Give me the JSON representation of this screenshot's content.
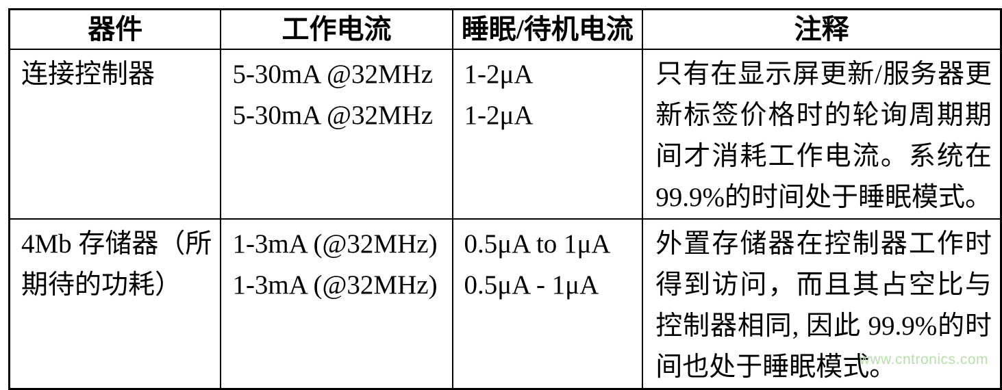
{
  "table": {
    "headers": [
      "器件",
      "工作电流",
      "睡眠/待机电流",
      "注释"
    ],
    "rows": [
      {
        "device_lines": [
          "连接控制器"
        ],
        "operating_lines": [
          "5-30mA @32MHz",
          "5-30mA @32MHz"
        ],
        "sleep_lines": [
          "1-2μA",
          "1-2μA"
        ],
        "notes_lines": [
          "只有在显示屏更新/服务器更",
          "新标签价格时的轮询周期期",
          "间才消耗工作电流。系统在",
          "99.9%的时间处于睡眠模式。"
        ]
      },
      {
        "device_lines": [
          "4Mb 存储器（所",
          "期待的功耗）"
        ],
        "operating_lines": [
          "1-3mA (@32MHz)",
          "1-3mA (@32MHz)"
        ],
        "sleep_lines": [
          "0.5μA to 1μA",
          "0.5μA - 1μA"
        ],
        "notes_lines": [
          "外置存储器在控制器工作时",
          "得到访问，而且其占空比与",
          "控制器相同, 因此 99.9%的时",
          "间也处于睡眠模式。"
        ]
      }
    ]
  },
  "watermark": {
    "text": "www.cntronics.com",
    "color": "#b6dfab"
  },
  "colors": {
    "border": "#000000",
    "text": "#000000",
    "background": "#ffffff"
  }
}
